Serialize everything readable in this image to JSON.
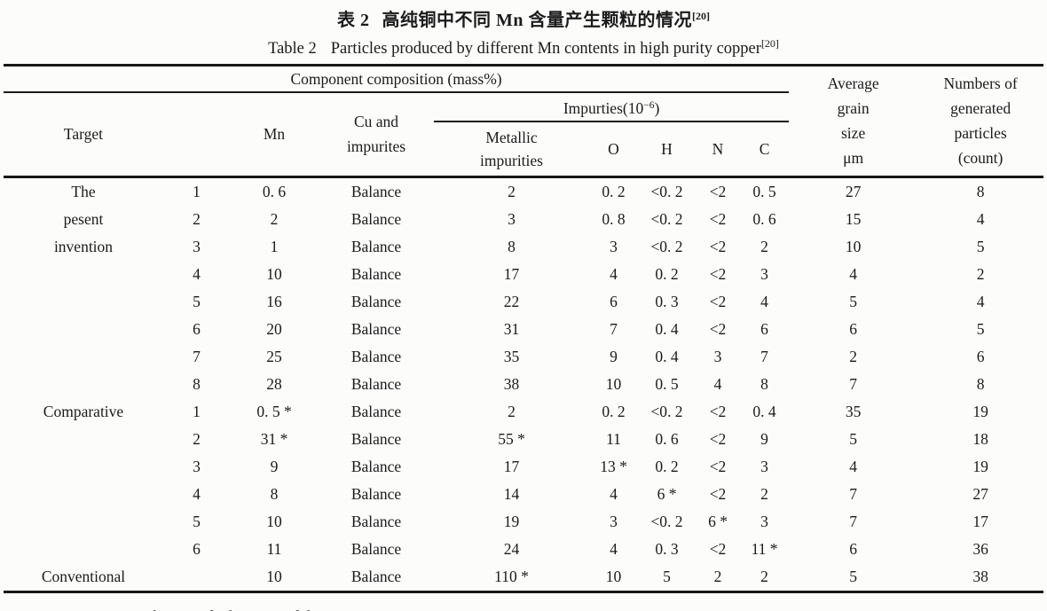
{
  "titles": {
    "zh": {
      "prefix": "表 2",
      "text": "高纯铜中不同 Mn 含量产生颗粒的情况",
      "ref": "[20]"
    },
    "en": {
      "prefix": "Table 2",
      "text": "Particles produced by different Mn contents in high purity copper",
      "ref": "[20]"
    }
  },
  "header": {
    "component_composition": "Component composition (mass%)",
    "target": "Target",
    "mn": "Mn",
    "cu_and_impurites": "Cu and\nimpurites",
    "impurities": {
      "pre": "Impurties(10",
      "sup": "−6",
      "post": ")"
    },
    "metallic_impurities": "Metallic\nimpurities",
    "o": "O",
    "h": "H",
    "n": "N",
    "c": "C",
    "average_grain": "Average\ngrain\nsize\nμm",
    "numbers_generated": "Numbers of\ngenerated\nparticles\n(count)"
  },
  "table": {
    "rows": [
      [
        "The",
        "1",
        "0. 6",
        "Balance",
        "2",
        "0. 2",
        "<0. 2",
        "<2",
        "0. 5",
        "27",
        "8"
      ],
      [
        "pesent",
        "2",
        "2",
        "Balance",
        "3",
        "0. 8",
        "<0. 2",
        "<2",
        "0. 6",
        "15",
        "4"
      ],
      [
        "invention",
        "3",
        "1",
        "Balance",
        "8",
        "3",
        "<0. 2",
        "<2",
        "2",
        "10",
        "5"
      ],
      [
        "",
        "4",
        "10",
        "Balance",
        "17",
        "4",
        "0. 2",
        "<2",
        "3",
        "4",
        "2"
      ],
      [
        "",
        "5",
        "16",
        "Balance",
        "22",
        "6",
        "0. 3",
        "<2",
        "4",
        "5",
        "4"
      ],
      [
        "",
        "6",
        "20",
        "Balance",
        "31",
        "7",
        "0. 4",
        "<2",
        "6",
        "6",
        "5"
      ],
      [
        "",
        "7",
        "25",
        "Balance",
        "35",
        "9",
        "0. 4",
        "3",
        "7",
        "2",
        "6"
      ],
      [
        "",
        "8",
        "28",
        "Balance",
        "38",
        "10",
        "0. 5",
        "4",
        "8",
        "7",
        "8"
      ],
      [
        "Comparative",
        "1",
        "0. 5 *",
        "Balance",
        "2",
        "0. 2",
        "<0. 2",
        "<2",
        "0. 4",
        "35",
        "19"
      ],
      [
        "",
        "2",
        "31 *",
        "Balance",
        "55 *",
        "11",
        "0. 6",
        "<2",
        "9",
        "5",
        "18"
      ],
      [
        "",
        "3",
        "9",
        "Balance",
        "17",
        "13 *",
        "0. 2",
        "<2",
        "3",
        "4",
        "19"
      ],
      [
        "",
        "4",
        "8",
        "Balance",
        "14",
        "4",
        "6 *",
        "<2",
        "2",
        "7",
        "27"
      ],
      [
        "",
        "5",
        "10",
        "Balance",
        "19",
        "3",
        "<0. 2",
        "6 *",
        "3",
        "7",
        "17"
      ],
      [
        "",
        "6",
        "11",
        "Balance",
        "24",
        "4",
        "0. 3",
        "<2",
        "11 *",
        "6",
        "36"
      ],
      [
        "Conventional",
        "",
        "10",
        "Balance",
        "110 *",
        "10",
        "5",
        "2",
        "2",
        "5",
        "38"
      ]
    ]
  },
  "note": "Note：*  Denotes a value outside the range of the present invention",
  "colors": {
    "ink": "#1b1b1b",
    "paper": "#fcfcfb"
  }
}
